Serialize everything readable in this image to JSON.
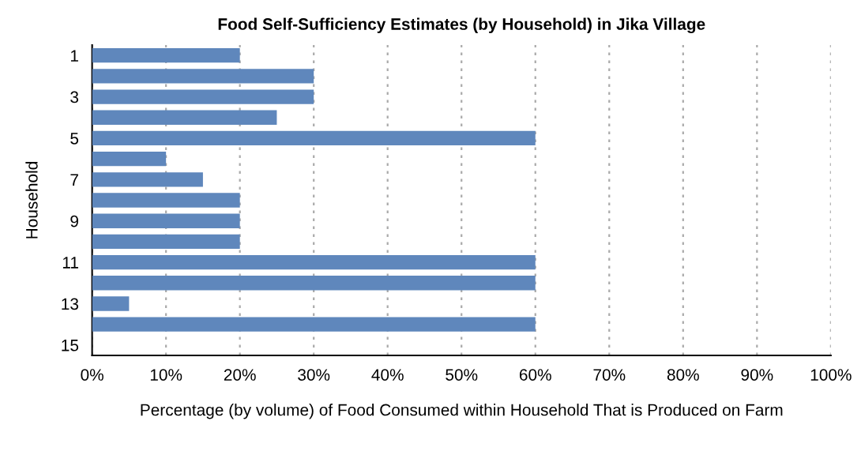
{
  "chart_data": {
    "type": "bar",
    "orientation": "horizontal",
    "title": "Food Self-Sufficiency Estimates (by Household) in Jika Village",
    "xlabel": "Percentage (by volume) of Food Consumed within Household That is Produced on Farm",
    "ylabel": "Household",
    "categories": [
      "1",
      null,
      "3",
      null,
      "5",
      null,
      "7",
      null,
      "9",
      null,
      "11",
      null,
      "13",
      null,
      "15"
    ],
    "values": [
      20,
      30,
      30,
      25,
      60,
      10,
      15,
      20,
      20,
      20,
      60,
      60,
      5,
      60,
      null
    ],
    "color": "#5f87bc",
    "xlim": [
      0,
      100
    ],
    "xticks": [
      {
        "value": 0,
        "label": "0%"
      },
      {
        "value": 10,
        "label": "10%"
      },
      {
        "value": 20,
        "label": "20%"
      },
      {
        "value": 30,
        "label": "30%"
      },
      {
        "value": 40,
        "label": "40%"
      },
      {
        "value": 50,
        "label": "50%"
      },
      {
        "value": 60,
        "label": "60%"
      },
      {
        "value": 70,
        "label": "70%"
      },
      {
        "value": 80,
        "label": "80%"
      },
      {
        "value": 90,
        "label": "90%"
      },
      {
        "value": 100,
        "label": "100%"
      }
    ],
    "grid": "x"
  }
}
